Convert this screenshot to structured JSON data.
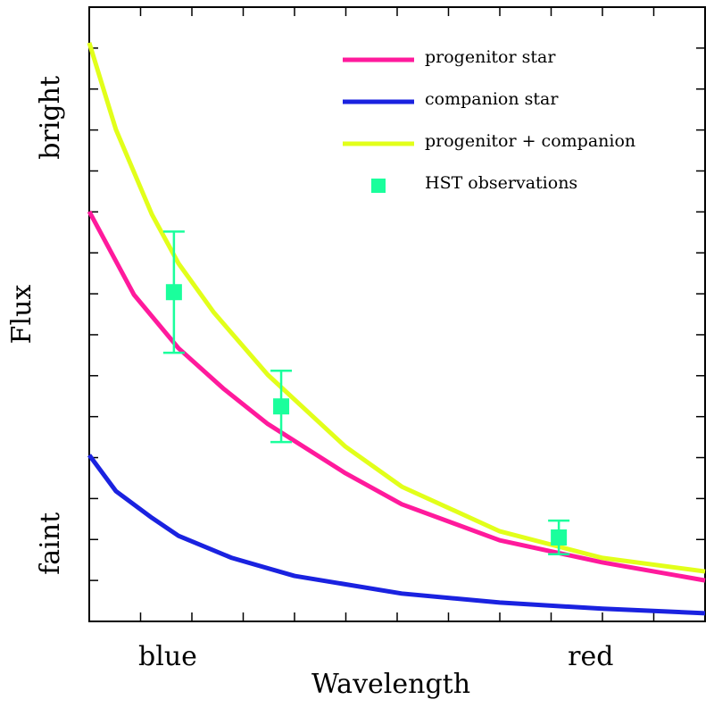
{
  "chart_data": {
    "type": "line",
    "xlabel": "Wavelength",
    "ylabel": "Flux",
    "xlim": [
      0,
      12
    ],
    "ylim": [
      0,
      15
    ],
    "xticks": [
      0,
      1,
      2,
      3,
      4,
      5,
      6,
      7,
      8,
      9,
      10,
      11,
      12
    ],
    "yticks": [
      0,
      1,
      2,
      3,
      4,
      5,
      6,
      7,
      8,
      9,
      10,
      11,
      12,
      13,
      14,
      15
    ],
    "x_text_labels": [
      {
        "value": 1.53,
        "label": "blue"
      },
      {
        "value": 9.77,
        "label": "red"
      }
    ],
    "y_text_labels": [
      {
        "value": 1.9,
        "label": "faint"
      },
      {
        "value": 12.3,
        "label": "bright"
      }
    ],
    "legend": "upper right",
    "series": [
      {
        "name": "progenitor star",
        "color": "#ff1a9c",
        "kind": "line",
        "x": [
          0,
          0.87,
          1.74,
          2.61,
          3.48,
          4.99,
          6.09,
          8.0,
          10,
          12
        ],
        "values": [
          10.01,
          7.98,
          6.67,
          5.69,
          4.82,
          3.62,
          2.86,
          1.98,
          1.44,
          1.0
        ]
      },
      {
        "name": "companion star",
        "color": "#1a22e0",
        "kind": "line",
        "x": [
          0,
          0.52,
          1.22,
          1.74,
          2.78,
          4.0,
          6.09,
          8.0,
          10,
          12
        ],
        "values": [
          4.06,
          3.18,
          2.53,
          2.09,
          1.55,
          1.11,
          0.68,
          0.46,
          0.31,
          0.2
        ]
      },
      {
        "name": "progenitor + companion",
        "color": "#e2ff1a",
        "kind": "line",
        "x": [
          0,
          0.52,
          1.22,
          1.74,
          2.43,
          3.48,
          4.99,
          6.09,
          8.0,
          10,
          12
        ],
        "values": [
          14.13,
          12.01,
          9.94,
          8.74,
          7.54,
          6.02,
          4.27,
          3.29,
          2.2,
          1.55,
          1.22
        ]
      },
      {
        "name": "HST observations",
        "color": "#1aff9c",
        "kind": "errorbar",
        "x": [
          1.65,
          3.74,
          9.15
        ],
        "values": [
          8.04,
          5.25,
          2.05
        ],
        "errors": [
          1.48,
          0.87,
          0.41
        ]
      }
    ]
  }
}
